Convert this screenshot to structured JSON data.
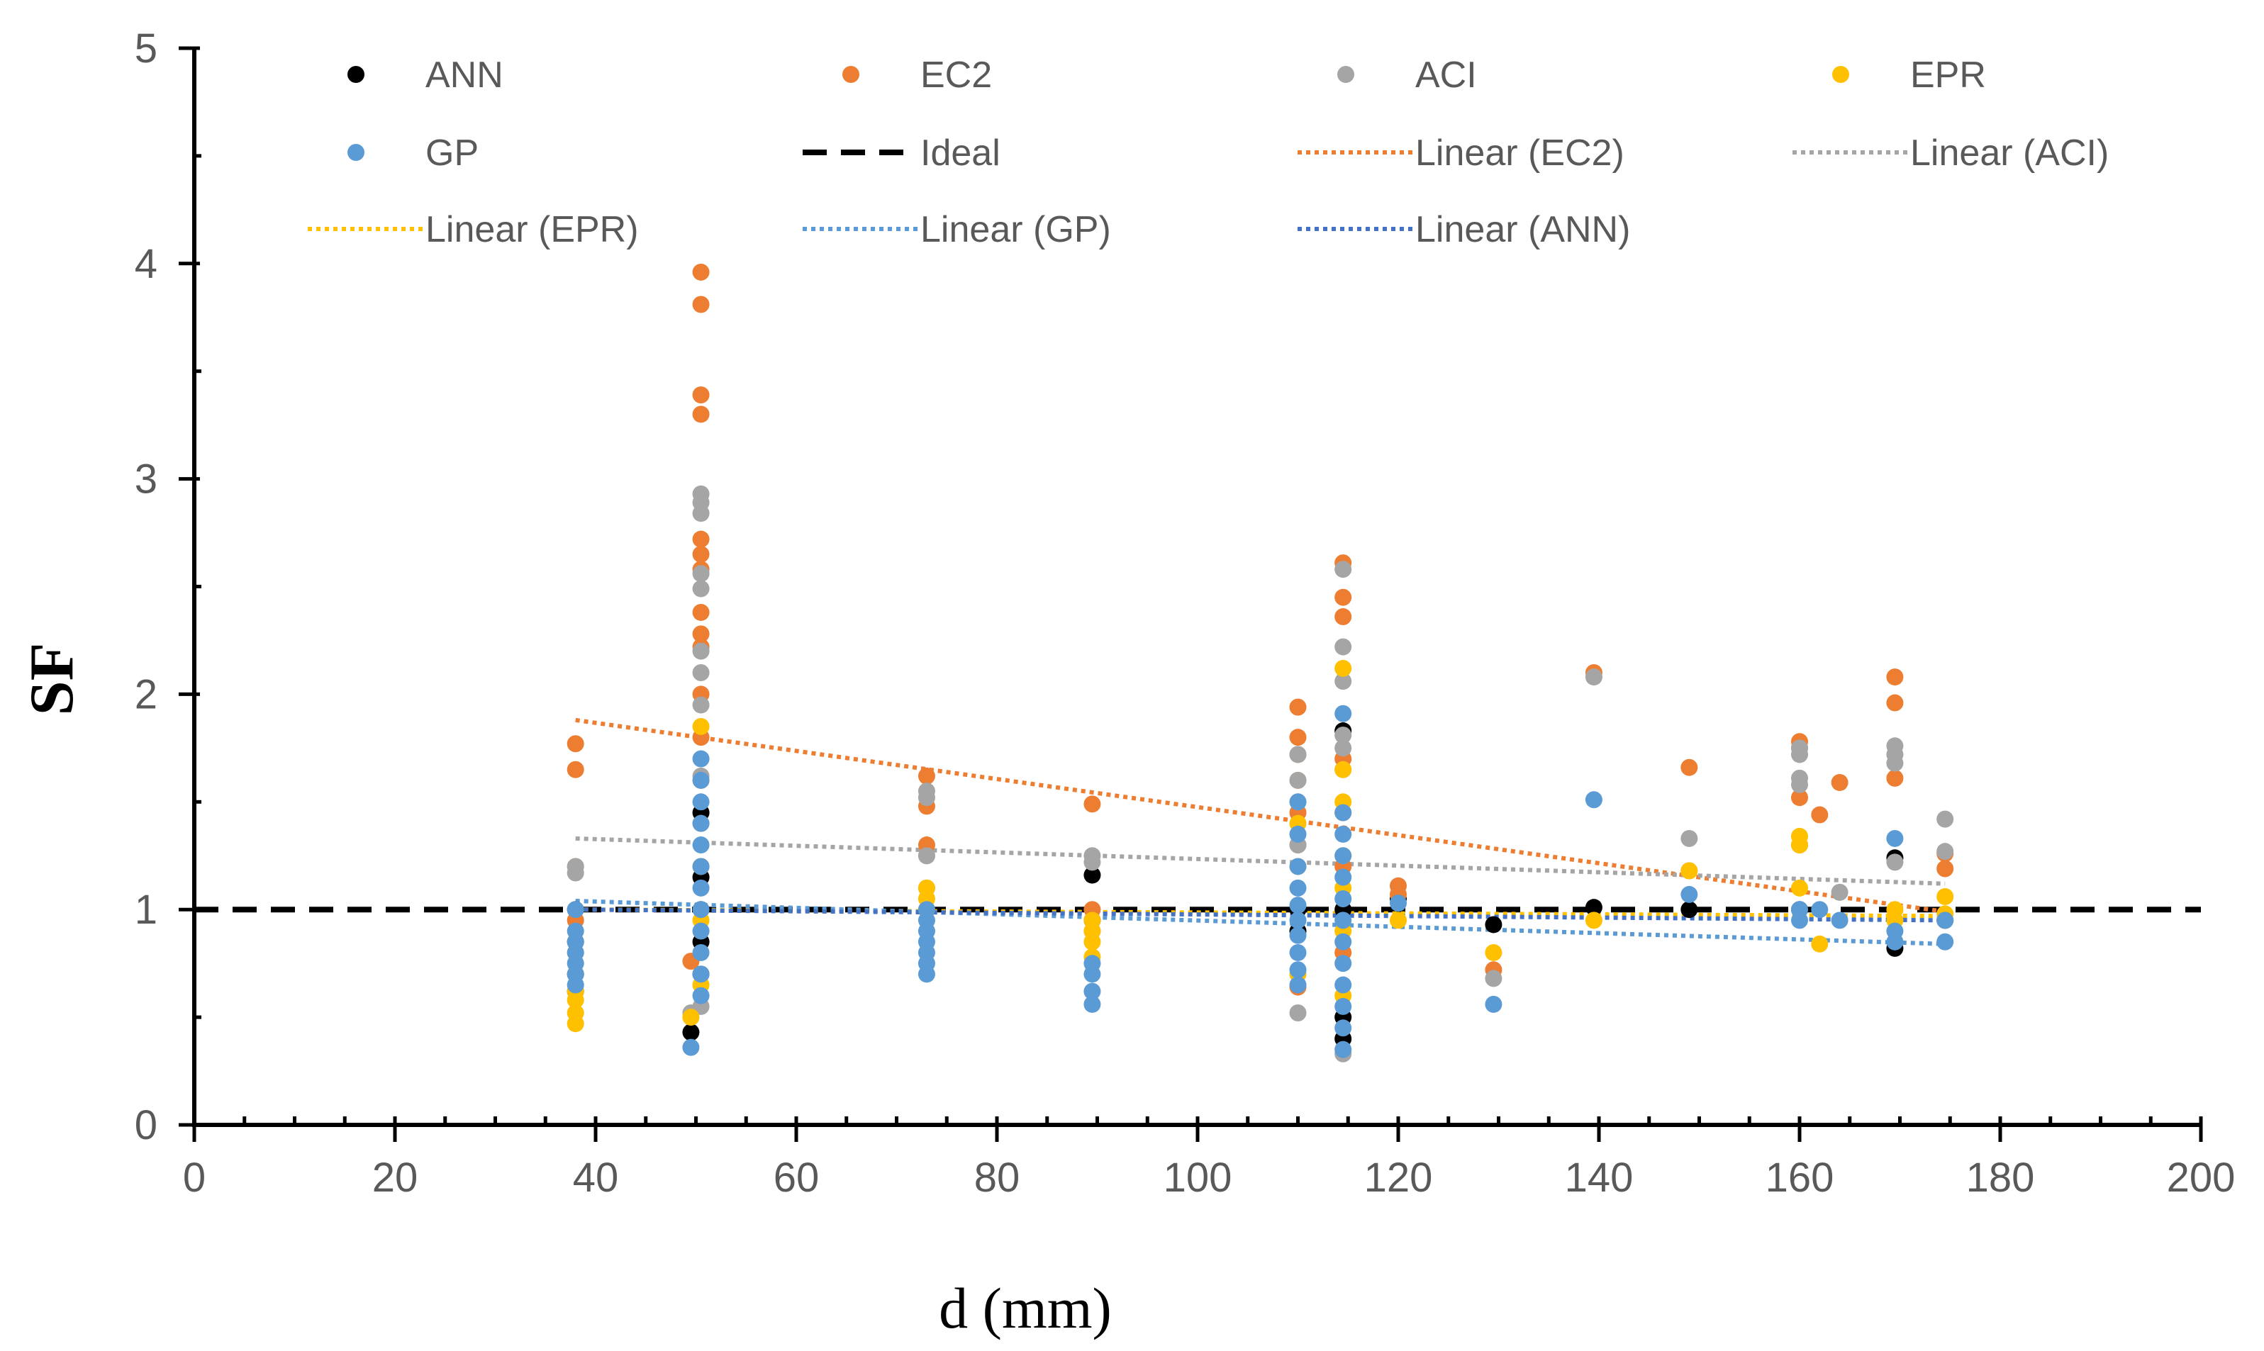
{
  "chart_data": {
    "type": "scatter",
    "title": "",
    "xlabel": "d (mm)",
    "ylabel": "SF",
    "xlim": [
      0,
      200
    ],
    "ylim": [
      0,
      5
    ],
    "x_ticks": [
      "0",
      "20",
      "40",
      "60",
      "80",
      "100",
      "120",
      "140",
      "160",
      "180",
      "200"
    ],
    "y_ticks": [
      "0",
      "1",
      "2",
      "3",
      "4",
      "5"
    ],
    "grid": false,
    "legend_position": "top",
    "series": [
      {
        "name": "ANN",
        "color": "#000000",
        "marker": "circle",
        "points": [
          [
            38,
            0.62
          ],
          [
            38,
            0.7
          ],
          [
            38,
            0.85
          ],
          [
            38,
            1.0
          ],
          [
            49.5,
            0.43
          ],
          [
            50.5,
            0.7
          ],
          [
            50.5,
            0.85
          ],
          [
            50.5,
            1.0
          ],
          [
            50.5,
            1.15
          ],
          [
            50.5,
            1.45
          ],
          [
            73,
            1.0
          ],
          [
            89.5,
            1.16
          ],
          [
            89.5,
            0.95
          ],
          [
            110,
            1.0
          ],
          [
            110,
            0.9
          ],
          [
            114.5,
            1.83
          ],
          [
            114.5,
            0.5
          ],
          [
            114.5,
            0.4
          ],
          [
            114.5,
            1.0
          ],
          [
            120,
            1.05
          ],
          [
            129.5,
            0.93
          ],
          [
            139.5,
            1.01
          ],
          [
            149,
            1.0
          ],
          [
            160,
            1.0
          ],
          [
            169.5,
            1.24
          ],
          [
            169.5,
            0.82
          ],
          [
            174.5,
            0.95
          ]
        ]
      },
      {
        "name": "EC2",
        "color": "#ED7D31",
        "marker": "circle",
        "points": [
          [
            38,
            1.77
          ],
          [
            38,
            1.65
          ],
          [
            38,
            1.2
          ],
          [
            38,
            0.95
          ],
          [
            38,
            0.8
          ],
          [
            49.5,
            0.76
          ],
          [
            50.5,
            3.96
          ],
          [
            50.5,
            3.81
          ],
          [
            50.5,
            3.39
          ],
          [
            50.5,
            3.3
          ],
          [
            50.5,
            2.72
          ],
          [
            50.5,
            2.65
          ],
          [
            50.5,
            2.58
          ],
          [
            50.5,
            2.38
          ],
          [
            50.5,
            2.28
          ],
          [
            50.5,
            2.22
          ],
          [
            50.5,
            2.0
          ],
          [
            50.5,
            1.8
          ],
          [
            50.5,
            1.6
          ],
          [
            50.5,
            1.4
          ],
          [
            50.5,
            1.2
          ],
          [
            73,
            1.62
          ],
          [
            73,
            1.48
          ],
          [
            73,
            1.3
          ],
          [
            73,
            1.25
          ],
          [
            73,
            1.1
          ],
          [
            89.5,
            1.49
          ],
          [
            89.5,
            1.0
          ],
          [
            89.5,
            0.9
          ],
          [
            110,
            1.94
          ],
          [
            110,
            1.8
          ],
          [
            110,
            1.72
          ],
          [
            110,
            1.6
          ],
          [
            110,
            1.45
          ],
          [
            110,
            1.3
          ],
          [
            110,
            0.64
          ],
          [
            114.5,
            2.61
          ],
          [
            114.5,
            2.45
          ],
          [
            114.5,
            2.36
          ],
          [
            114.5,
            1.7
          ],
          [
            114.5,
            1.45
          ],
          [
            114.5,
            1.2
          ],
          [
            114.5,
            0.8
          ],
          [
            120,
            1.11
          ],
          [
            120,
            1.07
          ],
          [
            129.5,
            0.72
          ],
          [
            139.5,
            2.1
          ],
          [
            149,
            1.66
          ],
          [
            149,
            1.18
          ],
          [
            160,
            1.78
          ],
          [
            160,
            1.75
          ],
          [
            160,
            1.52
          ],
          [
            160,
            1.3
          ],
          [
            162,
            1.44
          ],
          [
            164,
            1.59
          ],
          [
            169.5,
            2.08
          ],
          [
            169.5,
            1.96
          ],
          [
            169.5,
            1.61
          ],
          [
            174.5,
            1.26
          ],
          [
            174.5,
            1.19
          ]
        ]
      },
      {
        "name": "ACI",
        "color": "#A5A5A5",
        "marker": "circle",
        "points": [
          [
            38,
            1.2
          ],
          [
            38,
            1.17
          ],
          [
            49.5,
            0.52
          ],
          [
            50.5,
            0.55
          ],
          [
            50.5,
            2.93
          ],
          [
            50.5,
            2.89
          ],
          [
            50.5,
            2.84
          ],
          [
            50.5,
            2.56
          ],
          [
            50.5,
            2.49
          ],
          [
            50.5,
            2.2
          ],
          [
            50.5,
            2.1
          ],
          [
            50.5,
            1.95
          ],
          [
            50.5,
            1.62
          ],
          [
            73,
            1.55
          ],
          [
            73,
            1.52
          ],
          [
            73,
            1.25
          ],
          [
            89.5,
            1.25
          ],
          [
            89.5,
            1.22
          ],
          [
            110,
            1.72
          ],
          [
            110,
            1.6
          ],
          [
            110,
            1.5
          ],
          [
            110,
            1.3
          ],
          [
            110,
            0.52
          ],
          [
            114.5,
            2.58
          ],
          [
            114.5,
            2.22
          ],
          [
            114.5,
            2.06
          ],
          [
            114.5,
            1.81
          ],
          [
            114.5,
            1.75
          ],
          [
            114.5,
            1.65
          ],
          [
            114.5,
            0.33
          ],
          [
            129.5,
            0.68
          ],
          [
            139.5,
            2.08
          ],
          [
            149,
            1.33
          ],
          [
            160,
            1.75
          ],
          [
            160,
            1.72
          ],
          [
            160,
            1.61
          ],
          [
            160,
            1.58
          ],
          [
            164,
            1.08
          ],
          [
            169.5,
            1.76
          ],
          [
            169.5,
            1.72
          ],
          [
            169.5,
            1.68
          ],
          [
            169.5,
            1.22
          ],
          [
            174.5,
            1.42
          ],
          [
            174.5,
            1.27
          ]
        ]
      },
      {
        "name": "EPR",
        "color": "#FFC000",
        "marker": "circle",
        "points": [
          [
            38,
            0.47
          ],
          [
            38,
            0.52
          ],
          [
            38,
            0.58
          ],
          [
            38,
            0.62
          ],
          [
            49.5,
            0.5
          ],
          [
            50.5,
            0.65
          ],
          [
            50.5,
            1.85
          ],
          [
            50.5,
            1.2
          ],
          [
            50.5,
            0.95
          ],
          [
            73,
            1.1
          ],
          [
            73,
            1.05
          ],
          [
            73,
            1.0
          ],
          [
            89.5,
            0.95
          ],
          [
            89.5,
            0.9
          ],
          [
            89.5,
            0.85
          ],
          [
            89.5,
            0.78
          ],
          [
            110,
            1.4
          ],
          [
            110,
            1.2
          ],
          [
            110,
            0.7
          ],
          [
            114.5,
            2.12
          ],
          [
            114.5,
            1.65
          ],
          [
            114.5,
            1.5
          ],
          [
            114.5,
            1.25
          ],
          [
            114.5,
            1.1
          ],
          [
            114.5,
            0.9
          ],
          [
            114.5,
            0.6
          ],
          [
            120,
            0.95
          ],
          [
            129.5,
            0.8
          ],
          [
            139.5,
            0.95
          ],
          [
            149,
            1.18
          ],
          [
            160,
            1.34
          ],
          [
            160,
            1.3
          ],
          [
            160,
            1.1
          ],
          [
            162,
            0.84
          ],
          [
            169.5,
            1.0
          ],
          [
            169.5,
            0.95
          ],
          [
            174.5,
            1.06
          ],
          [
            174.5,
            0.98
          ]
        ]
      },
      {
        "name": "GP",
        "color": "#5B9BD5",
        "marker": "circle",
        "points": [
          [
            38,
            0.65
          ],
          [
            38,
            0.7
          ],
          [
            38,
            0.75
          ],
          [
            38,
            0.8
          ],
          [
            38,
            0.85
          ],
          [
            38,
            0.9
          ],
          [
            38,
            1.0
          ],
          [
            49.5,
            0.36
          ],
          [
            50.5,
            0.6
          ],
          [
            50.5,
            0.7
          ],
          [
            50.5,
            0.8
          ],
          [
            50.5,
            0.9
          ],
          [
            50.5,
            1.0
          ],
          [
            50.5,
            1.1
          ],
          [
            50.5,
            1.2
          ],
          [
            50.5,
            1.3
          ],
          [
            50.5,
            1.4
          ],
          [
            50.5,
            1.5
          ],
          [
            50.5,
            1.6
          ],
          [
            50.5,
            1.7
          ],
          [
            73,
            0.7
          ],
          [
            73,
            0.75
          ],
          [
            73,
            0.8
          ],
          [
            73,
            0.85
          ],
          [
            73,
            0.9
          ],
          [
            73,
            0.95
          ],
          [
            73,
            1.0
          ],
          [
            89.5,
            0.56
          ],
          [
            89.5,
            0.62
          ],
          [
            89.5,
            0.7
          ],
          [
            89.5,
            0.75
          ],
          [
            110,
            0.65
          ],
          [
            110,
            0.72
          ],
          [
            110,
            0.8
          ],
          [
            110,
            0.88
          ],
          [
            110,
            0.95
          ],
          [
            110,
            1.02
          ],
          [
            110,
            1.1
          ],
          [
            110,
            1.2
          ],
          [
            110,
            1.35
          ],
          [
            110,
            1.5
          ],
          [
            114.5,
            0.35
          ],
          [
            114.5,
            0.45
          ],
          [
            114.5,
            0.55
          ],
          [
            114.5,
            0.65
          ],
          [
            114.5,
            0.75
          ],
          [
            114.5,
            0.85
          ],
          [
            114.5,
            0.95
          ],
          [
            114.5,
            1.05
          ],
          [
            114.5,
            1.15
          ],
          [
            114.5,
            1.25
          ],
          [
            114.5,
            1.35
          ],
          [
            114.5,
            1.45
          ],
          [
            114.5,
            1.91
          ],
          [
            120,
            1.03
          ],
          [
            129.5,
            0.56
          ],
          [
            139.5,
            1.51
          ],
          [
            149,
            1.07
          ],
          [
            160,
            0.95
          ],
          [
            160,
            1.0
          ],
          [
            162,
            1.0
          ],
          [
            164,
            0.95
          ],
          [
            169.5,
            1.33
          ],
          [
            169.5,
            0.9
          ],
          [
            169.5,
            0.85
          ],
          [
            174.5,
            0.85
          ],
          [
            174.5,
            0.95
          ]
        ]
      }
    ],
    "lines": [
      {
        "name": "Ideal",
        "color": "#000000",
        "style": "dashed",
        "x": [
          0,
          200
        ],
        "y": [
          1.0,
          1.0
        ]
      },
      {
        "name": "Linear (EC2)",
        "color": "#ED7D31",
        "style": "dotted",
        "x": [
          38,
          174.5
        ],
        "y": [
          1.88,
          0.99
        ]
      },
      {
        "name": "Linear (ACI)",
        "color": "#A5A5A5",
        "style": "dotted",
        "x": [
          38,
          174.5
        ],
        "y": [
          1.33,
          1.12
        ]
      },
      {
        "name": "Linear (EPR)",
        "color": "#FFC000",
        "style": "dotted",
        "x": [
          38,
          174.5
        ],
        "y": [
          1.0,
          0.97
        ]
      },
      {
        "name": "Linear (GP)",
        "color": "#5B9BD5",
        "style": "dotted",
        "x": [
          38,
          174.5
        ],
        "y": [
          1.04,
          0.84
        ]
      },
      {
        "name": "Linear (ANN)",
        "color": "#4472C4",
        "style": "dotted",
        "x": [
          38,
          174.5
        ],
        "y": [
          1.0,
          0.95
        ]
      }
    ],
    "legend": [
      {
        "label": "ANN",
        "kind": "marker",
        "color": "#000000"
      },
      {
        "label": "EC2",
        "kind": "marker",
        "color": "#ED7D31"
      },
      {
        "label": "ACI",
        "kind": "marker",
        "color": "#A5A5A5"
      },
      {
        "label": "EPR",
        "kind": "marker",
        "color": "#FFC000"
      },
      {
        "label": "GP",
        "kind": "marker",
        "color": "#5B9BD5"
      },
      {
        "label": "Ideal",
        "kind": "dashed",
        "color": "#000000"
      },
      {
        "label": "Linear (EC2)",
        "kind": "dotted",
        "color": "#ED7D31"
      },
      {
        "label": "Linear (ACI)",
        "kind": "dotted",
        "color": "#A5A5A5"
      },
      {
        "label": "Linear (EPR)",
        "kind": "dotted",
        "color": "#FFC000"
      },
      {
        "label": "Linear (GP)",
        "kind": "dotted",
        "color": "#5B9BD5"
      },
      {
        "label": "Linear (ANN)",
        "kind": "dotted",
        "color": "#4472C4"
      }
    ]
  }
}
